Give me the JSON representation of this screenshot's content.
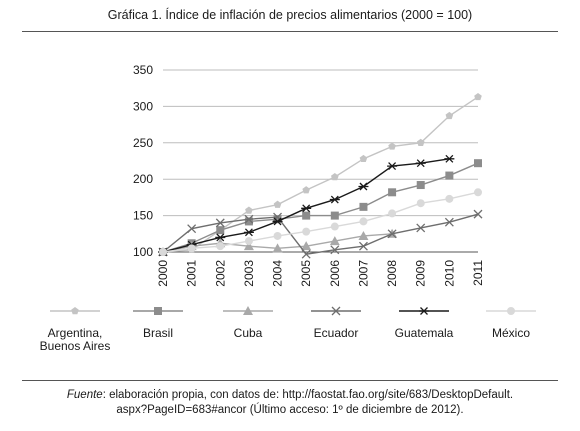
{
  "figure": {
    "title": "Gráfica 1. Índice de inflación de precios alimentarios (2000 = 100)",
    "source_label": "Fuente",
    "source_text": ": elaboración propia, con datos de: http://faostat.fao.org/site/683/DesktopDefault.",
    "source_text_2": "aspx?PageID=683#ancor (Último acceso: 1º de diciembre de 2012)."
  },
  "chart_data": {
    "type": "line",
    "x": [
      "2000",
      "2001",
      "2002",
      "2003",
      "2004",
      "2005",
      "2006",
      "2007",
      "2008",
      "2009",
      "2010",
      "2011"
    ],
    "ylim": [
      100,
      350
    ],
    "yticks": [
      100,
      150,
      200,
      250,
      300,
      350
    ],
    "grid": true,
    "legend_position": "bottom",
    "series": [
      {
        "name": "Argentina, Buenos Aires",
        "marker": "pentagon",
        "color": "#c4c4c4",
        "values": [
          100,
          103,
          130,
          157,
          165,
          185,
          203,
          228,
          245,
          250,
          287,
          313
        ]
      },
      {
        "name": "Brasil",
        "marker": "square",
        "color": "#8c8c8c",
        "values": [
          100,
          112,
          130,
          142,
          145,
          150,
          150,
          162,
          182,
          192,
          205,
          222
        ]
      },
      {
        "name": "Cuba",
        "marker": "triangle",
        "color": "#a9a9a9",
        "values": [
          100,
          108,
          112,
          108,
          105,
          108,
          115,
          122,
          125,
          null,
          null,
          null
        ]
      },
      {
        "name": "Ecuador",
        "marker": "x",
        "color": "#6e6e6e",
        "values": [
          100,
          132,
          140,
          145,
          148,
          97,
          103,
          108,
          125,
          133,
          141,
          152
        ]
      },
      {
        "name": "Guatemala",
        "marker": "star",
        "color": "#1a1a1a",
        "values": [
          100,
          110,
          120,
          127,
          142,
          160,
          172,
          190,
          218,
          222,
          228,
          null
        ]
      },
      {
        "name": "México",
        "marker": "circle",
        "color": "#d9d9d9",
        "values": [
          100,
          105,
          108,
          115,
          122,
          128,
          135,
          142,
          153,
          167,
          173,
          182
        ]
      }
    ]
  }
}
